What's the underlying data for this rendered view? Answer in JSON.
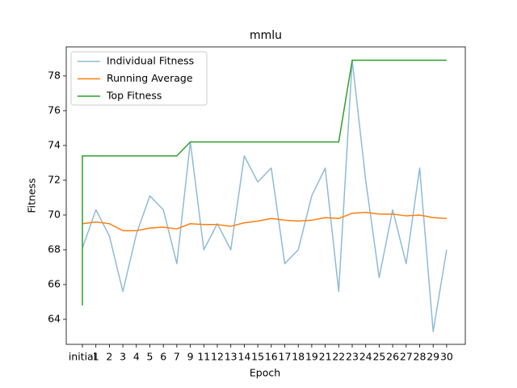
{
  "chart_data": {
    "type": "line",
    "title": "mmlu",
    "x_label": "Epoch",
    "y_label": "Fitness",
    "categories": [
      "initial",
      "1",
      "2",
      "3",
      "4",
      "5",
      "6",
      "7",
      "9",
      "11",
      "12",
      "13",
      "14",
      "15",
      "16",
      "17",
      "18",
      "19",
      "21",
      "22",
      "23",
      "24",
      "25",
      "26",
      "27",
      "28",
      "29",
      "30"
    ],
    "series": [
      {
        "name": "Individual Fitness",
        "color": "#1f77b4",
        "values": [
          68.1,
          70.3,
          68.8,
          65.6,
          68.9,
          71.1,
          70.3,
          67.2,
          74.2,
          68.0,
          69.5,
          68.0,
          73.4,
          71.9,
          72.7,
          67.2,
          68.0,
          71.1,
          72.7,
          65.6,
          78.9,
          72.0,
          66.4,
          70.3,
          67.2,
          72.7,
          63.3,
          68.0
        ]
      },
      {
        "name": "Running Average",
        "color": "#ff7f0e",
        "values": [
          69.5,
          69.6,
          69.5,
          69.1,
          69.1,
          69.25,
          69.3,
          69.2,
          69.5,
          69.45,
          69.45,
          69.35,
          69.55,
          69.65,
          69.8,
          69.7,
          69.65,
          69.7,
          69.85,
          69.8,
          70.1,
          70.15,
          70.05,
          70.05,
          69.95,
          70.0,
          69.85,
          69.8
        ]
      },
      {
        "name": "Top Fitness",
        "color": "#2ca02c",
        "x": [
          "initial",
          "initial",
          "1",
          "2",
          "3",
          "4",
          "5",
          "6",
          "7",
          "9",
          "11",
          "12",
          "13",
          "14",
          "15",
          "16",
          "17",
          "18",
          "19",
          "21",
          "22",
          "23",
          "24",
          "25",
          "26",
          "27",
          "28",
          "29",
          "30"
        ],
        "values": [
          64.8,
          73.4,
          73.4,
          73.4,
          73.4,
          73.4,
          73.4,
          73.4,
          73.4,
          74.2,
          74.2,
          74.2,
          74.2,
          74.2,
          74.2,
          74.2,
          74.2,
          74.2,
          74.2,
          74.2,
          74.2,
          78.9,
          78.9,
          78.9,
          78.9,
          78.9,
          78.9,
          78.9,
          78.9
        ]
      }
    ],
    "ylim": [
      62.56,
      79.67
    ],
    "yticks": [
      64,
      66,
      68,
      70,
      72,
      74,
      76,
      78
    ],
    "legend": "upper left"
  }
}
